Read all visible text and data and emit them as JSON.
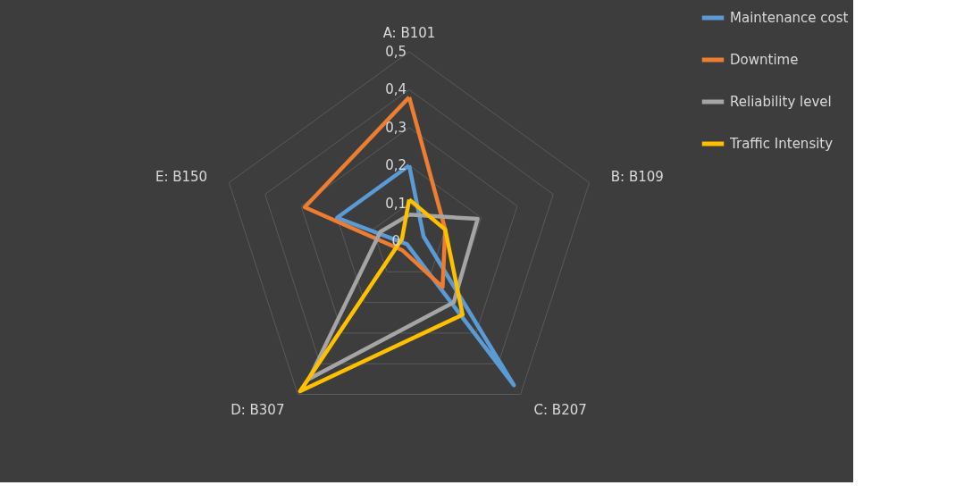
{
  "chart_data": {
    "type": "radar",
    "categories": [
      "A: B101",
      "B: B109",
      "C: B207",
      "D: B307",
      "E: B150"
    ],
    "series": [
      {
        "name": "Maintenance cost",
        "color": "#5b9bd5",
        "values": [
          0.2,
          0.04,
          0.47,
          0.01,
          0.2
        ]
      },
      {
        "name": "Downtime",
        "color": "#ed7d31",
        "values": [
          0.38,
          0.1,
          0.15,
          0.03,
          0.29
        ]
      },
      {
        "name": "Reliability level",
        "color": "#a5a5a5",
        "values": [
          0.07,
          0.19,
          0.2,
          0.45,
          0.08
        ]
      },
      {
        "name": "Traffic Intensity",
        "color": "#ffc000",
        "values": [
          0.11,
          0.1,
          0.24,
          0.49,
          0.02
        ]
      }
    ],
    "ylim": [
      0,
      0.5
    ],
    "yticks": [
      {
        "value": 0,
        "label": "0"
      },
      {
        "value": 0.1,
        "label": "0,1"
      },
      {
        "value": 0.2,
        "label": "0,2"
      },
      {
        "value": 0.3,
        "label": "0,3"
      },
      {
        "value": 0.4,
        "label": "0,4"
      },
      {
        "value": 0.5,
        "label": "0,5"
      }
    ],
    "grid": true,
    "legend": "right"
  }
}
